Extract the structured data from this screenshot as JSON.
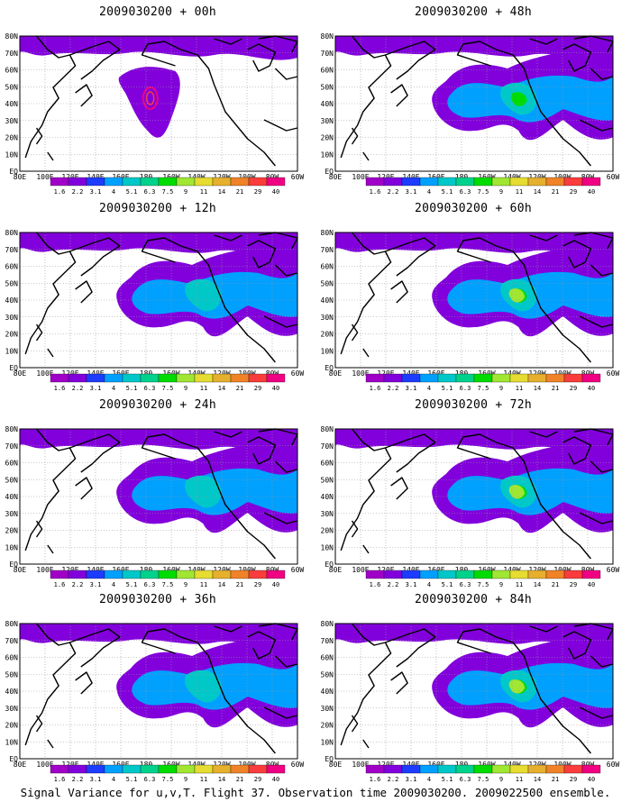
{
  "figure": {
    "caption": "Signal Variance for u,v,T. Flight 37. Observation time 2009030200. 2009022500 ensemble."
  },
  "axes": {
    "lat_labels": [
      "80N",
      "70N",
      "60N",
      "50N",
      "40N",
      "30N",
      "20N",
      "10N",
      "EQ"
    ],
    "lon_labels": [
      "80E",
      "100E",
      "120E",
      "140E",
      "160E",
      "180",
      "160W",
      "140W",
      "120W",
      "100W",
      "80W",
      "60W"
    ]
  },
  "colorbar": {
    "labels": [
      "1.6",
      "2.2",
      "3.1",
      "4",
      "5.1",
      "6.3",
      "7.5",
      "9",
      "11",
      "14",
      "21",
      "29",
      "40"
    ],
    "colors": [
      "#a000c8",
      "#8200dc",
      "#1e3cff",
      "#00a0ff",
      "#00c8c8",
      "#00d28c",
      "#00dc00",
      "#a0e632",
      "#e6dc32",
      "#e6af2d",
      "#f08228",
      "#fa3c3c",
      "#f00082"
    ]
  },
  "panels": [
    {
      "title": "2009030200 + 00h",
      "max_level": 13
    },
    {
      "title": "2009030200 + 12h",
      "max_level": 6
    },
    {
      "title": "2009030200 + 24h",
      "max_level": 6
    },
    {
      "title": "2009030200 + 36h",
      "max_level": 6
    },
    {
      "title": "2009030200 + 48h",
      "max_level": 8
    },
    {
      "title": "2009030200 + 60h",
      "max_level": 9
    },
    {
      "title": "2009030200 + 72h",
      "max_level": 9
    },
    {
      "title": "2009030200 + 84h",
      "max_level": 9
    }
  ]
}
